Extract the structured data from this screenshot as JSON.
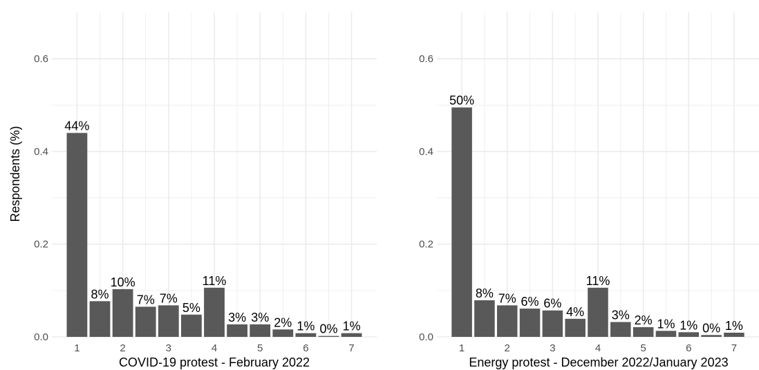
{
  "chart_data": [
    {
      "type": "bar",
      "xlabel": "COVID-19 protest - February 2022",
      "ylabel": "Respondents (%)",
      "x": [
        1,
        1.5,
        2,
        2.5,
        3,
        3.5,
        4,
        4.5,
        5,
        5.5,
        6,
        6.5,
        7
      ],
      "values": [
        0.44,
        0.077,
        0.103,
        0.065,
        0.068,
        0.048,
        0.106,
        0.027,
        0.027,
        0.016,
        0.008,
        0.002,
        0.008
      ],
      "labels": [
        "44%",
        "8%",
        "10%",
        "7%",
        "7%",
        "5%",
        "11%",
        "3%",
        "3%",
        "2%",
        "1%",
        "0%",
        "1%"
      ],
      "xticks": [
        "1",
        "2",
        "3",
        "4",
        "5",
        "6",
        "7"
      ],
      "yticks": [
        "0.0",
        "0.2",
        "0.4",
        "0.6"
      ],
      "ylim": [
        0,
        0.7
      ],
      "xlim": [
        0.45,
        7.55
      ],
      "grid": true,
      "colors": {
        "bar": "#595959",
        "grid": "#ebebeb"
      }
    },
    {
      "type": "bar",
      "xlabel": "Energy protest - December 2022/January 2023",
      "ylabel": "",
      "x": [
        1,
        1.5,
        2,
        2.5,
        3,
        3.5,
        4,
        4.5,
        5,
        5.5,
        6,
        6.5,
        7
      ],
      "values": [
        0.495,
        0.079,
        0.068,
        0.061,
        0.057,
        0.039,
        0.106,
        0.032,
        0.021,
        0.013,
        0.01,
        0.004,
        0.009
      ],
      "labels": [
        "50%",
        "8%",
        "7%",
        "6%",
        "6%",
        "4%",
        "11%",
        "3%",
        "2%",
        "1%",
        "1%",
        "0%",
        "1%"
      ],
      "xticks": [
        "1",
        "2",
        "3",
        "4",
        "5",
        "6",
        "7"
      ],
      "yticks": [
        "0.0",
        "0.2",
        "0.4",
        "0.6"
      ],
      "ylim": [
        0,
        0.7
      ],
      "xlim": [
        0.45,
        7.55
      ],
      "grid": true,
      "colors": {
        "bar": "#595959",
        "grid": "#ebebeb"
      }
    }
  ]
}
